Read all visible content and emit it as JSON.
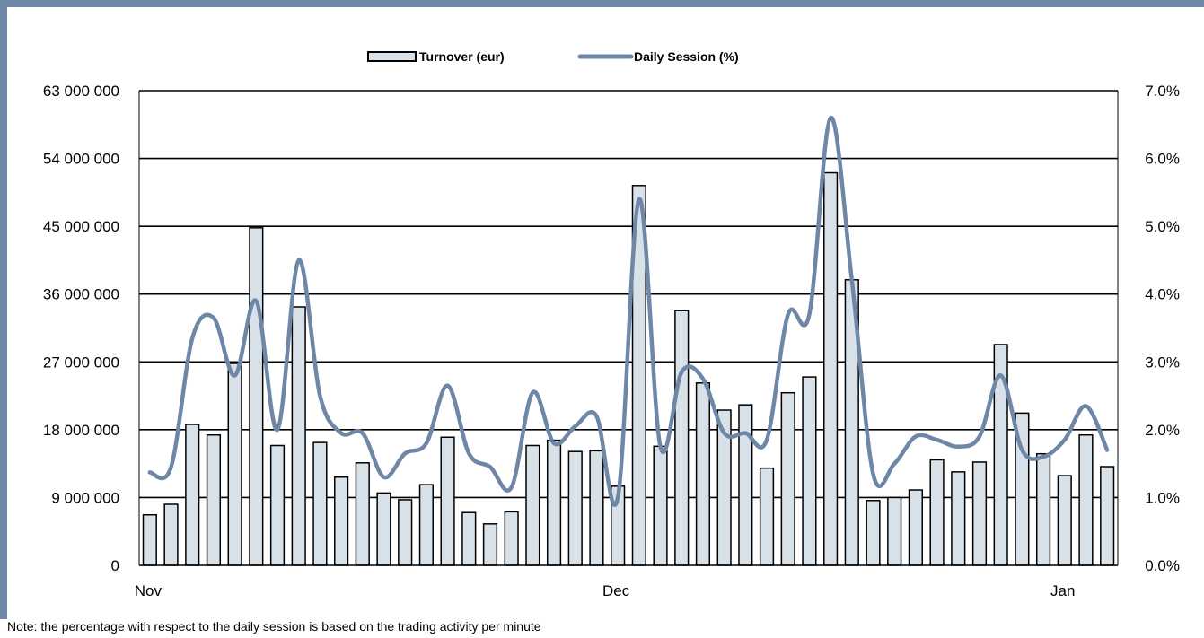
{
  "note": "Note: the percentage with respect to the daily session is based on the trading activity per minute",
  "colors": {
    "frame": "#6e87a6",
    "bar_fill": "#d9e1e8",
    "bar_stroke": "#000000",
    "line": "#6e87a6",
    "grid": "#000000"
  },
  "chart_data": {
    "type": "bar",
    "title": "",
    "legend_placement": "top-center",
    "grid": true,
    "x_tick_labels": [
      {
        "label": "Nov",
        "index": 0
      },
      {
        "label": "Dec",
        "index": 22
      },
      {
        "label": "Jan",
        "index": 43
      }
    ],
    "y_left": {
      "lim": [
        0,
        63000000
      ],
      "ticks": [
        0,
        9000000,
        18000000,
        27000000,
        36000000,
        45000000,
        54000000,
        63000000
      ],
      "tick_labels": [
        "0",
        "9 000 000",
        "18 000 000",
        "27 000 000",
        "36 000 000",
        "45 000 000",
        "54 000 000",
        "63 000 000"
      ]
    },
    "y_right": {
      "lim": [
        0,
        7.0
      ],
      "ticks": [
        0,
        1,
        2,
        3,
        4,
        5,
        6,
        7
      ],
      "tick_labels": [
        "0.0%",
        "1.0%",
        "2.0%",
        "3.0%",
        "4.0%",
        "5.0%",
        "6.0%",
        "7.0%"
      ]
    },
    "series": [
      {
        "name": "Turnover (eur)",
        "type": "bar",
        "axis": "left",
        "values": [
          6700000,
          8100000,
          18700000,
          17300000,
          26800000,
          44800000,
          15900000,
          34300000,
          16300000,
          11700000,
          13600000,
          9600000,
          8700000,
          10700000,
          17000000,
          7000000,
          5500000,
          7100000,
          15900000,
          16600000,
          15100000,
          15200000,
          10500000,
          50400000,
          15800000,
          33800000,
          24200000,
          20600000,
          21300000,
          12900000,
          22900000,
          25000000,
          52100000,
          37900000,
          8600000,
          9000000,
          10000000,
          14000000,
          12400000,
          13700000,
          29300000,
          20200000,
          14800000,
          11900000,
          17300000,
          13100000
        ]
      },
      {
        "name": "Daily Session (%)",
        "type": "line",
        "axis": "right",
        "values": [
          1.37,
          1.45,
          3.35,
          3.65,
          2.8,
          3.9,
          2.0,
          4.5,
          2.5,
          1.95,
          1.95,
          1.3,
          1.65,
          1.8,
          2.65,
          1.65,
          1.45,
          1.15,
          2.55,
          1.8,
          2.05,
          2.2,
          1.0,
          5.4,
          1.75,
          2.85,
          2.75,
          1.95,
          1.95,
          1.85,
          3.7,
          3.7,
          6.6,
          4.2,
          1.35,
          1.5,
          1.9,
          1.85,
          1.75,
          1.9,
          2.8,
          1.7,
          1.6,
          1.85,
          2.35,
          1.7
        ]
      }
    ]
  }
}
